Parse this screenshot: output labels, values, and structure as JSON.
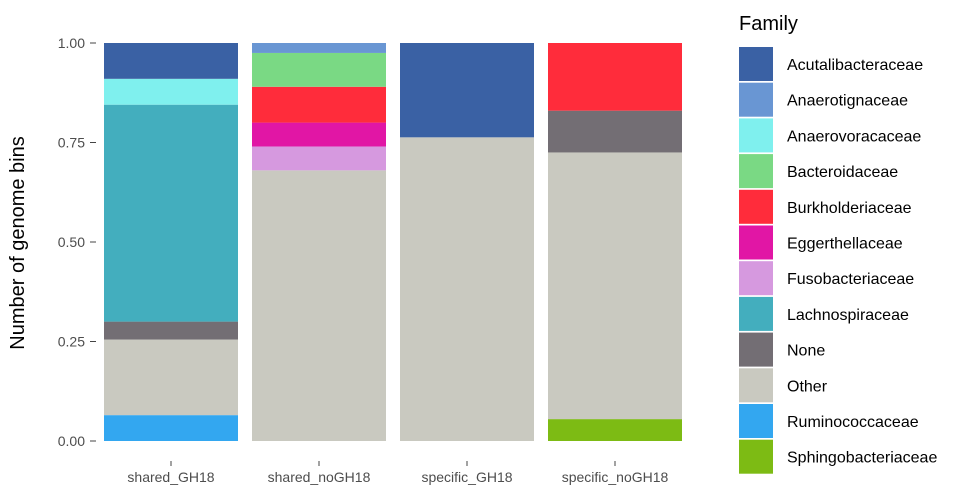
{
  "chart_data": {
    "type": "bar",
    "stacked": true,
    "ylabel": "Number of genome bins",
    "xlabel": "",
    "ylim": [
      0,
      1
    ],
    "yticks": [
      "0.00",
      "0.25",
      "0.50",
      "0.75",
      "1.00"
    ],
    "grid": false,
    "legend_position": "right",
    "legend_title": "Family",
    "categories": [
      "shared_GH18",
      "shared_noGH18",
      "specific_GH18",
      "specific_noGH18"
    ],
    "stack_order_bottom_to_top": [
      "Sphingobacteriaceae",
      "Ruminococcaceae",
      "Other",
      "None",
      "Lachnospiraceae",
      "Fusobacteriaceae",
      "Eggerthellaceae",
      "Burkholderiaceae",
      "Bacteroidaceae",
      "Anaerovoracaceae",
      "Anaerotignaceae",
      "Acutalibacteraceae"
    ],
    "series": [
      {
        "name": "Acutalibacteraceae",
        "color": "#3A61A4",
        "values": [
          0.09,
          0.0,
          0.237,
          0.0
        ]
      },
      {
        "name": "Anaerotignaceae",
        "color": "#6996D3",
        "values": [
          0.0,
          0.025,
          0.0,
          0.0
        ]
      },
      {
        "name": "Anaerovoracaceae",
        "color": "#7FF0EE",
        "values": [
          0.065,
          0.0,
          0.0,
          0.0
        ]
      },
      {
        "name": "Bacteroidaceae",
        "color": "#7AD984",
        "values": [
          0.0,
          0.085,
          0.0,
          0.0
        ]
      },
      {
        "name": "Burkholderiaceae",
        "color": "#FF2C3B",
        "values": [
          0.0,
          0.09,
          0.0,
          0.17
        ]
      },
      {
        "name": "Eggerthellaceae",
        "color": "#E116A5",
        "values": [
          0.0,
          0.06,
          0.0,
          0.0
        ]
      },
      {
        "name": "Fusobacteriaceae",
        "color": "#D699DF",
        "values": [
          0.0,
          0.06,
          0.0,
          0.0
        ]
      },
      {
        "name": "Lachnospiraceae",
        "color": "#43AEBE",
        "values": [
          0.545,
          0.0,
          0.0,
          0.0
        ]
      },
      {
        "name": "None",
        "color": "#736E74",
        "values": [
          0.045,
          0.0,
          0.0,
          0.105
        ]
      },
      {
        "name": "Other",
        "color": "#C9C9C0",
        "values": [
          0.19,
          0.68,
          0.763,
          0.67
        ]
      },
      {
        "name": "Ruminococcaceae",
        "color": "#33A7F0",
        "values": [
          0.065,
          0.0,
          0.0,
          0.0
        ]
      },
      {
        "name": "Sphingobacteriaceae",
        "color": "#7DBB14",
        "values": [
          0.0,
          0.0,
          0.0,
          0.055
        ]
      }
    ]
  }
}
